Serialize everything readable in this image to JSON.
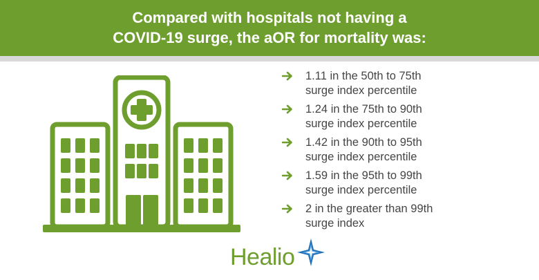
{
  "header": {
    "title_line1": "Compared with hospitals not having a",
    "title_line2": "COVID-19 surge, the aOR for mortality was:"
  },
  "illustration": {
    "icon": "hospital-icon",
    "cross_icon": "medical-cross-icon"
  },
  "items": [
    {
      "line1": "1.11 in the 50th to 75th",
      "line2": "surge index percentile"
    },
    {
      "line1": "1.24 in the 75th to 90th",
      "line2": "surge index percentile"
    },
    {
      "line1": "1.42 in the 90th to 95th",
      "line2": "surge index percentile"
    },
    {
      "line1": "1.59 in the 95th to 99th",
      "line2": "surge index percentile"
    },
    {
      "line1": "2 in the greater than 99th",
      "line2": "surge index"
    }
  ],
  "logo": {
    "text": "Healio",
    "star_icon": "healio-star-icon"
  },
  "colors": {
    "brand_green": "#6e9e2e",
    "divider_gray": "#d9d9d9",
    "text_gray": "#454545",
    "logo_blue": "#1d6fb8"
  }
}
